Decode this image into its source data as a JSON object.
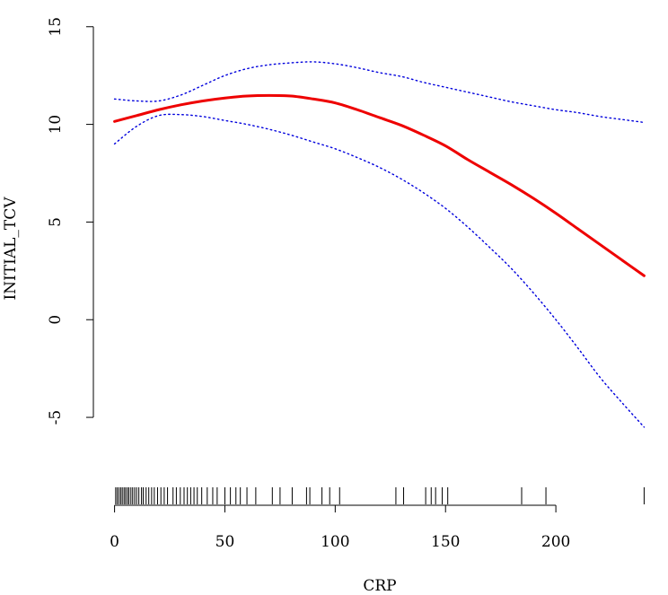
{
  "chart_data": {
    "type": "line",
    "title": "",
    "xlabel": "CRP",
    "ylabel": "INITIAL_TCV",
    "xlim": [
      -9.6,
      249.6
    ],
    "ylim": [
      -9.5,
      16.0
    ],
    "xticks": [
      0,
      50,
      100,
      150,
      200
    ],
    "yticks": [
      -5,
      0,
      5,
      10,
      15
    ],
    "grid": false,
    "legend": "none",
    "series": [
      {
        "role": "fit",
        "color": "#ee0000",
        "style": "solid",
        "x": [
          0,
          10,
          20,
          30,
          40,
          50,
          60,
          70,
          80,
          90,
          100,
          110,
          120,
          130,
          140,
          150,
          160,
          170,
          180,
          190,
          200,
          210,
          220,
          230,
          240
        ],
        "y": [
          10.15,
          10.45,
          10.75,
          11.0,
          11.2,
          11.35,
          11.45,
          11.48,
          11.45,
          11.3,
          11.1,
          10.75,
          10.35,
          9.95,
          9.45,
          8.9,
          8.2,
          7.55,
          6.9,
          6.2,
          5.45,
          4.65,
          3.85,
          3.05,
          2.25
        ]
      },
      {
        "role": "upper-ci",
        "color": "#0000dd",
        "style": "dotted",
        "x": [
          0,
          10,
          20,
          30,
          40,
          50,
          60,
          70,
          80,
          90,
          100,
          110,
          120,
          130,
          140,
          150,
          160,
          170,
          180,
          190,
          200,
          210,
          220,
          230,
          240
        ],
        "y": [
          11.3,
          11.2,
          11.2,
          11.5,
          12.0,
          12.5,
          12.85,
          13.05,
          13.15,
          13.2,
          13.1,
          12.9,
          12.65,
          12.45,
          12.15,
          11.9,
          11.65,
          11.4,
          11.15,
          10.95,
          10.75,
          10.6,
          10.4,
          10.25,
          10.1
        ]
      },
      {
        "role": "lower-ci",
        "color": "#0000dd",
        "style": "dotted",
        "x": [
          0,
          10,
          20,
          30,
          40,
          50,
          60,
          70,
          80,
          90,
          100,
          110,
          120,
          130,
          140,
          150,
          160,
          170,
          180,
          190,
          200,
          210,
          220,
          230,
          240
        ],
        "y": [
          9.0,
          9.9,
          10.45,
          10.5,
          10.4,
          10.2,
          10.0,
          9.75,
          9.45,
          9.1,
          8.75,
          8.3,
          7.8,
          7.2,
          6.5,
          5.7,
          4.75,
          3.7,
          2.6,
          1.35,
          0.0,
          -1.45,
          -2.95,
          -4.25,
          -5.5
        ]
      }
    ],
    "rug": [
      0.5,
      1.2,
      2.0,
      2.8,
      3.5,
      4.3,
      5.0,
      5.8,
      6.5,
      7.4,
      8.2,
      9.1,
      10.0,
      11.0,
      12.2,
      13.0,
      14.3,
      15.5,
      16.8,
      18.0,
      19.5,
      21.0,
      22.5,
      24.0,
      26.5,
      28.0,
      29.8,
      31.5,
      33.0,
      34.5,
      36.0,
      37.5,
      39.5,
      42.0,
      44.5,
      46.5,
      50.0,
      52.5,
      55.0,
      57.0,
      60.0,
      64.0,
      71.5,
      75.0,
      80.5,
      87.0,
      88.5,
      94.0,
      97.5,
      102.0,
      127.5,
      131.0,
      141.0,
      143.5,
      145.5,
      148.5,
      151.0,
      184.5,
      195.5,
      240.0
    ]
  }
}
